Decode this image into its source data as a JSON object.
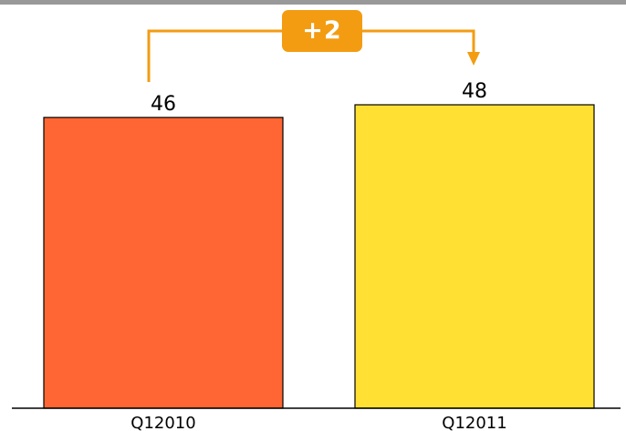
{
  "chart_data": {
    "type": "bar",
    "categories": [
      "Q12010",
      "Q12011"
    ],
    "values": [
      46,
      48
    ],
    "ylim": [
      0,
      48
    ],
    "colors": [
      "#ff6633",
      "#ffe033"
    ],
    "annotation": {
      "label": "+2",
      "color": "#f39c12"
    },
    "title": "",
    "xlabel": "",
    "ylabel": "",
    "grid": false,
    "legend": "none"
  }
}
